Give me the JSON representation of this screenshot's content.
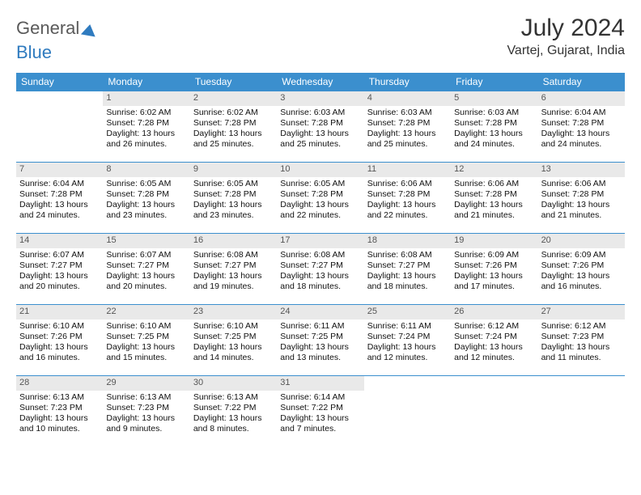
{
  "brand": {
    "part1": "General",
    "part2": "Blue"
  },
  "title": "July 2024",
  "location": "Vartej, Gujarat, India",
  "weekdays": [
    "Sunday",
    "Monday",
    "Tuesday",
    "Wednesday",
    "Thursday",
    "Friday",
    "Saturday"
  ],
  "colors": {
    "header_bar": "#3b8fce",
    "daynum_bg": "#e9e9e9",
    "rule": "#3b8fce"
  },
  "blank_leading": 1,
  "days": [
    {
      "n": 1,
      "sunrise": "6:02 AM",
      "sunset": "7:28 PM",
      "dl": "13 hours and 26 minutes."
    },
    {
      "n": 2,
      "sunrise": "6:02 AM",
      "sunset": "7:28 PM",
      "dl": "13 hours and 25 minutes."
    },
    {
      "n": 3,
      "sunrise": "6:03 AM",
      "sunset": "7:28 PM",
      "dl": "13 hours and 25 minutes."
    },
    {
      "n": 4,
      "sunrise": "6:03 AM",
      "sunset": "7:28 PM",
      "dl": "13 hours and 25 minutes."
    },
    {
      "n": 5,
      "sunrise": "6:03 AM",
      "sunset": "7:28 PM",
      "dl": "13 hours and 24 minutes."
    },
    {
      "n": 6,
      "sunrise": "6:04 AM",
      "sunset": "7:28 PM",
      "dl": "13 hours and 24 minutes."
    },
    {
      "n": 7,
      "sunrise": "6:04 AM",
      "sunset": "7:28 PM",
      "dl": "13 hours and 24 minutes."
    },
    {
      "n": 8,
      "sunrise": "6:05 AM",
      "sunset": "7:28 PM",
      "dl": "13 hours and 23 minutes."
    },
    {
      "n": 9,
      "sunrise": "6:05 AM",
      "sunset": "7:28 PM",
      "dl": "13 hours and 23 minutes."
    },
    {
      "n": 10,
      "sunrise": "6:05 AM",
      "sunset": "7:28 PM",
      "dl": "13 hours and 22 minutes."
    },
    {
      "n": 11,
      "sunrise": "6:06 AM",
      "sunset": "7:28 PM",
      "dl": "13 hours and 22 minutes."
    },
    {
      "n": 12,
      "sunrise": "6:06 AM",
      "sunset": "7:28 PM",
      "dl": "13 hours and 21 minutes."
    },
    {
      "n": 13,
      "sunrise": "6:06 AM",
      "sunset": "7:28 PM",
      "dl": "13 hours and 21 minutes."
    },
    {
      "n": 14,
      "sunrise": "6:07 AM",
      "sunset": "7:27 PM",
      "dl": "13 hours and 20 minutes."
    },
    {
      "n": 15,
      "sunrise": "6:07 AM",
      "sunset": "7:27 PM",
      "dl": "13 hours and 20 minutes."
    },
    {
      "n": 16,
      "sunrise": "6:08 AM",
      "sunset": "7:27 PM",
      "dl": "13 hours and 19 minutes."
    },
    {
      "n": 17,
      "sunrise": "6:08 AM",
      "sunset": "7:27 PM",
      "dl": "13 hours and 18 minutes."
    },
    {
      "n": 18,
      "sunrise": "6:08 AM",
      "sunset": "7:27 PM",
      "dl": "13 hours and 18 minutes."
    },
    {
      "n": 19,
      "sunrise": "6:09 AM",
      "sunset": "7:26 PM",
      "dl": "13 hours and 17 minutes."
    },
    {
      "n": 20,
      "sunrise": "6:09 AM",
      "sunset": "7:26 PM",
      "dl": "13 hours and 16 minutes."
    },
    {
      "n": 21,
      "sunrise": "6:10 AM",
      "sunset": "7:26 PM",
      "dl": "13 hours and 16 minutes."
    },
    {
      "n": 22,
      "sunrise": "6:10 AM",
      "sunset": "7:25 PM",
      "dl": "13 hours and 15 minutes."
    },
    {
      "n": 23,
      "sunrise": "6:10 AM",
      "sunset": "7:25 PM",
      "dl": "13 hours and 14 minutes."
    },
    {
      "n": 24,
      "sunrise": "6:11 AM",
      "sunset": "7:25 PM",
      "dl": "13 hours and 13 minutes."
    },
    {
      "n": 25,
      "sunrise": "6:11 AM",
      "sunset": "7:24 PM",
      "dl": "13 hours and 12 minutes."
    },
    {
      "n": 26,
      "sunrise": "6:12 AM",
      "sunset": "7:24 PM",
      "dl": "13 hours and 12 minutes."
    },
    {
      "n": 27,
      "sunrise": "6:12 AM",
      "sunset": "7:23 PM",
      "dl": "13 hours and 11 minutes."
    },
    {
      "n": 28,
      "sunrise": "6:13 AM",
      "sunset": "7:23 PM",
      "dl": "13 hours and 10 minutes."
    },
    {
      "n": 29,
      "sunrise": "6:13 AM",
      "sunset": "7:23 PM",
      "dl": "13 hours and 9 minutes."
    },
    {
      "n": 30,
      "sunrise": "6:13 AM",
      "sunset": "7:22 PM",
      "dl": "13 hours and 8 minutes."
    },
    {
      "n": 31,
      "sunrise": "6:14 AM",
      "sunset": "7:22 PM",
      "dl": "13 hours and 7 minutes."
    }
  ],
  "labels": {
    "sunrise": "Sunrise:",
    "sunset": "Sunset:",
    "daylight": "Daylight:"
  }
}
